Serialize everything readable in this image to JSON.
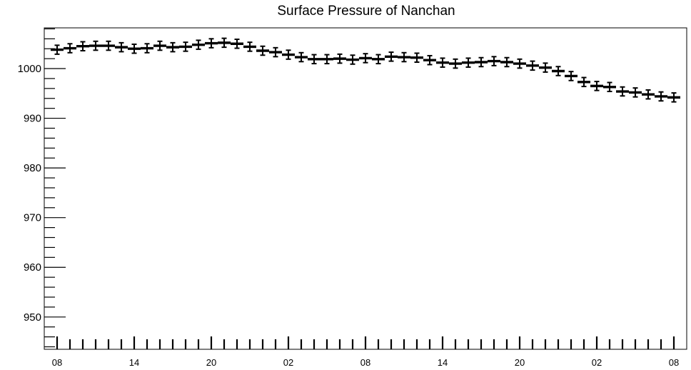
{
  "chart_data": {
    "type": "scatter",
    "title": "Surface Pressure of Nanchan",
    "xlabel": "",
    "ylabel": "",
    "ylim": [
      943.5,
      1008.2
    ],
    "yticks": [
      950,
      960,
      970,
      980,
      990,
      1000
    ],
    "x_tick_labels": [
      "08",
      "14",
      "20",
      "02",
      "08",
      "14",
      "20",
      "02",
      "08"
    ],
    "x_tick_hours": [
      0,
      6,
      12,
      18,
      24,
      30,
      36,
      42,
      48
    ],
    "x_range_hours": [
      -1,
      49
    ],
    "grid": false,
    "error_bar": 0.9,
    "series": [
      {
        "x_hours": [
          0,
          1,
          2,
          3,
          4,
          5,
          6,
          7,
          8,
          9,
          10,
          11,
          12,
          13,
          14,
          15,
          16,
          17,
          18,
          19,
          20,
          21,
          22,
          23,
          24,
          25,
          26,
          27,
          28,
          29,
          30,
          31,
          32,
          33,
          34,
          35,
          36,
          37,
          38,
          39,
          40,
          41,
          42,
          43,
          44,
          45,
          46,
          47,
          48
        ],
        "values": [
          1003.8,
          1004.1,
          1004.5,
          1004.6,
          1004.6,
          1004.3,
          1004.0,
          1004.1,
          1004.6,
          1004.3,
          1004.4,
          1004.8,
          1005.1,
          1005.2,
          1005.0,
          1004.4,
          1003.6,
          1003.3,
          1002.8,
          1002.3,
          1001.9,
          1001.9,
          1002.0,
          1001.8,
          1002.1,
          1001.9,
          1002.4,
          1002.3,
          1002.2,
          1001.7,
          1001.2,
          1001.0,
          1001.2,
          1001.3,
          1001.5,
          1001.3,
          1001.0,
          1000.6,
          1000.2,
          999.5,
          998.5,
          997.3,
          996.5,
          996.3,
          995.4,
          995.2,
          994.8,
          994.4,
          994.2
        ]
      }
    ]
  }
}
